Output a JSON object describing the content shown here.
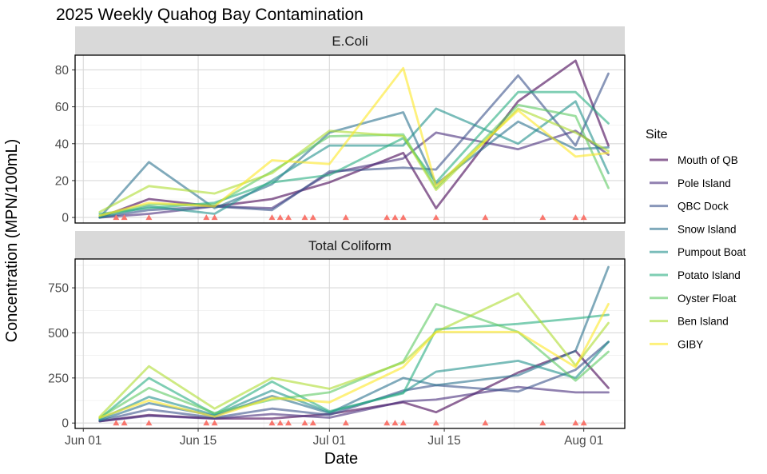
{
  "chart_data": {
    "type": "line",
    "title": "2025 Weekly Quahog Bay Contamination",
    "xlabel": "Date",
    "ylabel": "Concentration (MPN/100mL)",
    "x_ticks": [
      "Jun 01",
      "Jun 15",
      "Jul 01",
      "Jul 15",
      "Aug 01"
    ],
    "x_tick_dates": [
      "2025-06-01",
      "2025-06-15",
      "2025-07-01",
      "2025-07-15",
      "2025-08-01"
    ],
    "xlim": [
      "2025-05-31",
      "2025-08-06"
    ],
    "grid": true,
    "legend": {
      "title": "Site",
      "position": "right"
    },
    "sampling_dates": [
      "2025-06-03",
      "2025-06-09",
      "2025-06-17",
      "2025-06-24",
      "2025-07-01",
      "2025-07-10",
      "2025-07-14",
      "2025-07-24",
      "2025-07-31",
      "2025-08-04"
    ],
    "rain_event_dates": [
      "2025-06-05",
      "2025-06-06",
      "2025-06-09",
      "2025-06-16",
      "2025-06-17",
      "2025-06-24",
      "2025-06-25",
      "2025-06-26",
      "2025-06-28",
      "2025-06-29",
      "2025-07-03",
      "2025-07-08",
      "2025-07-09",
      "2025-07-10",
      "2025-07-14",
      "2025-07-20",
      "2025-07-27",
      "2025-07-31",
      "2025-08-01"
    ],
    "series_colors": {
      "Mouth of QB": "#440154",
      "Pole Island": "#472d7b",
      "QBC Dock": "#3b528b",
      "Snow Island": "#2c728e",
      "Pumpout Boat": "#21918c",
      "Potato Island": "#28ae80",
      "Oyster Float": "#5ec962",
      "Ben Island": "#addc30",
      "GIBY": "#fde725"
    },
    "marker_color": "#f8766d",
    "panels": [
      {
        "label": "E.Coli",
        "ylim": [
          -3,
          88
        ],
        "y_ticks": [
          0,
          20,
          40,
          60,
          80
        ],
        "series": [
          {
            "name": "Mouth of QB",
            "values": [
              0,
              10,
              6,
              10,
              19,
              35,
              5,
              63,
              85,
              39
            ]
          },
          {
            "name": "Pole Island",
            "values": [
              0,
              2,
              6,
              5,
              24,
              32,
              46,
              37,
              47,
              34
            ]
          },
          {
            "name": "QBC Dock",
            "values": [
              0,
              4,
              6,
              4,
              25,
              27,
              26,
              77,
              39,
              78
            ]
          },
          {
            "name": "Snow Island",
            "values": [
              0,
              30,
              5,
              18,
              46,
              57,
              18,
              52,
              37,
              38
            ]
          },
          {
            "name": "Pumpout Boat",
            "values": [
              0,
              6,
              2,
              20,
              39,
              39,
              59,
              40,
              63,
              24
            ]
          },
          {
            "name": "Potato Island",
            "values": [
              2,
              5,
              8,
              19,
              23,
              43,
              19,
              68,
              68,
              51
            ]
          },
          {
            "name": "Oyster Float",
            "values": [
              1,
              7,
              7,
              25,
              44,
              45,
              16,
              61,
              55,
              16
            ]
          },
          {
            "name": "Ben Island",
            "values": [
              3,
              17,
              13,
              24,
              47,
              44,
              15,
              59,
              46,
              36
            ]
          },
          {
            "name": "GIBY",
            "values": [
              1,
              8,
              6,
              31,
              29,
              81,
              17,
              58,
              33,
              35
            ]
          }
        ]
      },
      {
        "label": "Total Coliform",
        "ylim": [
          -30,
          910
        ],
        "y_ticks": [
          0,
          250,
          500,
          750
        ],
        "series": [
          {
            "name": "Mouth of QB",
            "values": [
              10,
              45,
              25,
              25,
              50,
              115,
              60,
              280,
              400,
              195
            ]
          },
          {
            "name": "Pole Island",
            "values": [
              10,
              40,
              25,
              50,
              30,
              120,
              130,
              200,
              170,
              170
            ]
          },
          {
            "name": "QBC Dock",
            "values": [
              12,
              75,
              30,
              80,
              45,
              180,
              210,
              175,
              295,
              450
            ]
          },
          {
            "name": "Snow Island",
            "values": [
              15,
              110,
              40,
              150,
              55,
              250,
              210,
              265,
              400,
              865
            ]
          },
          {
            "name": "Pumpout Boat",
            "values": [
              20,
              145,
              45,
              180,
              60,
              170,
              285,
              345,
              250,
              450
            ]
          },
          {
            "name": "Potato Island",
            "values": [
              25,
              250,
              50,
              230,
              65,
              165,
              520,
              550,
              580,
              600
            ]
          },
          {
            "name": "Oyster Float",
            "values": [
              30,
              195,
              55,
              130,
              170,
              340,
              660,
              505,
              235,
              395
            ]
          },
          {
            "name": "Ben Island",
            "values": [
              35,
              315,
              80,
              250,
              190,
              335,
              505,
              720,
              320,
              555
            ]
          },
          {
            "name": "GIBY",
            "values": [
              30,
              125,
              35,
              140,
              115,
              310,
              505,
              505,
              310,
              660
            ]
          }
        ]
      }
    ]
  }
}
